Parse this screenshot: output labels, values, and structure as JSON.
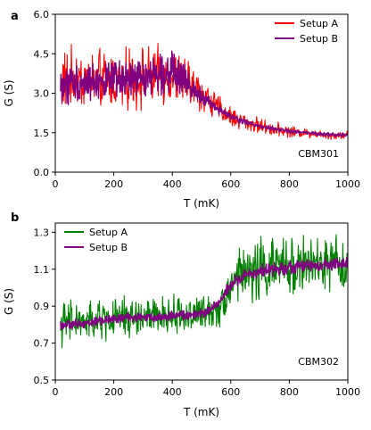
{
  "chart_data": [
    {
      "panel": "a",
      "type": "line",
      "annotation": "CBM301",
      "xlabel": "T (mK)",
      "ylabel": "G (S)",
      "xlim": [
        0,
        1000
      ],
      "ylim": [
        0.0,
        6.0
      ],
      "xticks": [
        0,
        200,
        400,
        600,
        800,
        1000
      ],
      "yticks": [
        "0.0",
        "1.5",
        "3.0",
        "4.5",
        "6.0"
      ],
      "ytick_values": [
        0.0,
        1.5,
        3.0,
        4.5,
        6.0
      ],
      "legend_position": "top-right",
      "series": [
        {
          "name": "Setup A",
          "color": "#ff0000",
          "x": [
            20,
            50,
            100,
            150,
            200,
            250,
            300,
            350,
            400,
            450,
            500,
            550,
            600,
            650,
            700,
            750,
            800,
            850,
            900,
            950,
            1000
          ],
          "y": [
            3.4,
            3.5,
            3.5,
            3.5,
            3.5,
            3.5,
            3.6,
            3.6,
            3.6,
            3.4,
            3.0,
            2.5,
            2.1,
            1.9,
            1.75,
            1.65,
            1.55,
            1.5,
            1.45,
            1.4,
            1.4
          ],
          "noise": [
            1.4,
            1.4,
            1.3,
            1.3,
            1.3,
            1.3,
            1.3,
            1.3,
            1.3,
            1.1,
            0.8,
            0.6,
            0.45,
            0.4,
            0.35,
            0.3,
            0.25,
            0.2,
            0.2,
            0.18,
            0.18
          ]
        },
        {
          "name": "Setup B",
          "color": "#800080",
          "x": [
            20,
            50,
            100,
            150,
            200,
            250,
            300,
            350,
            400,
            450,
            500,
            550,
            600,
            650,
            700,
            750,
            800,
            850,
            900,
            950,
            1000
          ],
          "y": [
            3.3,
            3.4,
            3.4,
            3.45,
            3.5,
            3.5,
            3.6,
            3.75,
            3.8,
            3.4,
            2.9,
            2.45,
            2.1,
            1.9,
            1.75,
            1.65,
            1.55,
            1.5,
            1.45,
            1.42,
            1.42
          ],
          "noise": [
            0.9,
            0.9,
            0.8,
            0.8,
            0.8,
            0.8,
            0.8,
            0.85,
            0.9,
            0.6,
            0.3,
            0.2,
            0.15,
            0.12,
            0.1,
            0.1,
            0.1,
            0.08,
            0.08,
            0.08,
            0.08
          ]
        }
      ]
    },
    {
      "panel": "b",
      "type": "line",
      "annotation": "CBM302",
      "xlabel": "T (mK)",
      "ylabel": "G (S)",
      "xlim": [
        0,
        1000
      ],
      "ylim": [
        0.5,
        1.35
      ],
      "xticks": [
        0,
        200,
        400,
        600,
        800,
        1000
      ],
      "yticks": [
        "0.5",
        "0.7",
        "0.9",
        "1.1",
        "1.3"
      ],
      "ytick_values": [
        0.5,
        0.7,
        0.9,
        1.1,
        1.3
      ],
      "legend_position": "top-left",
      "series": [
        {
          "name": "Setup A",
          "color": "#008000",
          "x": [
            20,
            50,
            100,
            150,
            200,
            250,
            300,
            350,
            400,
            450,
            500,
            540,
            560,
            580,
            600,
            620,
            650,
            700,
            750,
            800,
            850,
            900,
            950,
            1000
          ],
          "y": [
            0.8,
            0.81,
            0.81,
            0.82,
            0.83,
            0.84,
            0.84,
            0.84,
            0.85,
            0.85,
            0.86,
            0.88,
            0.9,
            0.95,
            1.01,
            1.05,
            1.08,
            1.1,
            1.11,
            1.12,
            1.12,
            1.12,
            1.13,
            1.13
          ],
          "noise": [
            0.14,
            0.14,
            0.13,
            0.13,
            0.13,
            0.13,
            0.13,
            0.12,
            0.12,
            0.12,
            0.12,
            0.12,
            0.12,
            0.13,
            0.15,
            0.17,
            0.18,
            0.2,
            0.2,
            0.18,
            0.18,
            0.17,
            0.17,
            0.16
          ]
        },
        {
          "name": "Setup B",
          "color": "#800080",
          "x": [
            20,
            50,
            100,
            150,
            200,
            250,
            300,
            350,
            400,
            450,
            500,
            540,
            560,
            580,
            600,
            620,
            650,
            700,
            750,
            800,
            850,
            900,
            950,
            1000
          ],
          "y": [
            0.8,
            0.8,
            0.81,
            0.82,
            0.83,
            0.84,
            0.84,
            0.84,
            0.85,
            0.85,
            0.86,
            0.89,
            0.92,
            0.97,
            1.01,
            1.04,
            1.07,
            1.09,
            1.1,
            1.11,
            1.12,
            1.12,
            1.13,
            1.13
          ],
          "noise": [
            0.03,
            0.03,
            0.03,
            0.03,
            0.03,
            0.03,
            0.03,
            0.03,
            0.03,
            0.03,
            0.03,
            0.03,
            0.03,
            0.04,
            0.04,
            0.04,
            0.04,
            0.04,
            0.04,
            0.04,
            0.04,
            0.04,
            0.04,
            0.04
          ]
        }
      ]
    }
  ]
}
